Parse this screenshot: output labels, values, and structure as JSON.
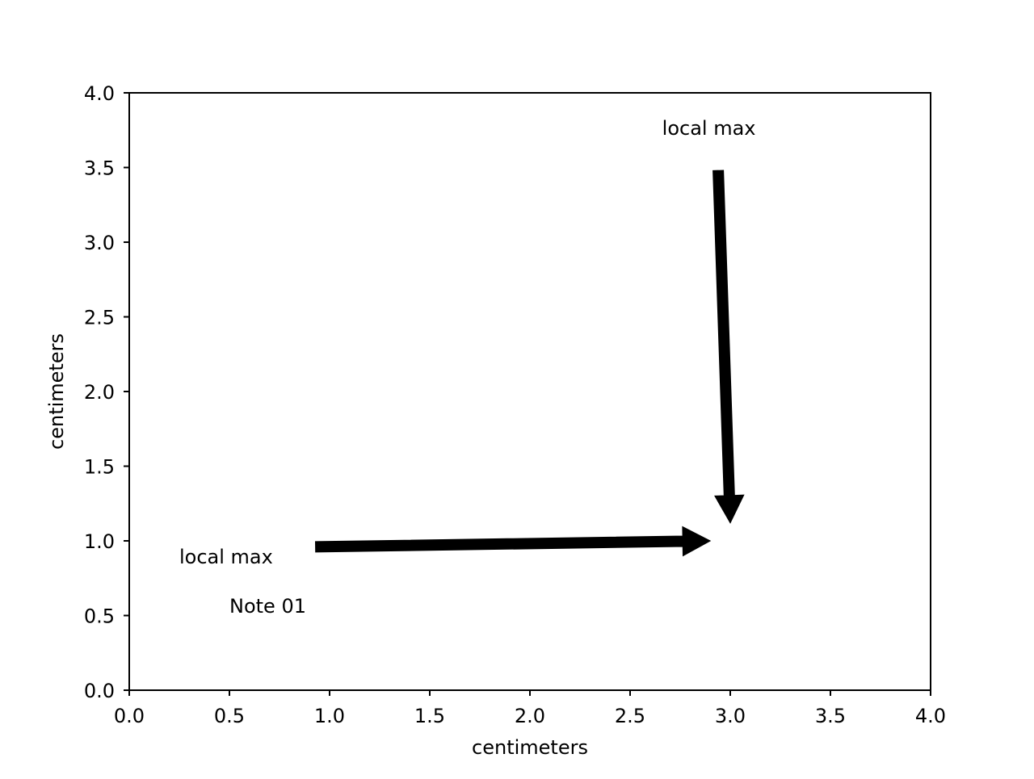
{
  "chart_data": {
    "type": "scatter",
    "title": "",
    "xlabel": "centimeters",
    "ylabel": "centimeters",
    "xlim": [
      0.0,
      4.0
    ],
    "ylim": [
      0.0,
      4.0
    ],
    "grid": false,
    "xticks": [
      0.0,
      0.5,
      1.0,
      1.5,
      2.0,
      2.5,
      3.0,
      3.5,
      4.0
    ],
    "yticks": [
      0.0,
      0.5,
      1.0,
      1.5,
      2.0,
      2.5,
      3.0,
      3.5,
      4.0
    ],
    "xtick_labels": [
      "0.0",
      "0.5",
      "1.0",
      "1.5",
      "2.0",
      "2.5",
      "3.0",
      "3.5",
      "4.0"
    ],
    "ytick_labels": [
      "0.0",
      "0.5",
      "1.0",
      "1.5",
      "2.0",
      "2.5",
      "3.0",
      "3.5",
      "4.0"
    ],
    "series": [],
    "annotations": [
      {
        "text": "local max",
        "text_at": [
          0.25,
          0.85
        ],
        "arrow_from": [
          0.93,
          0.96
        ],
        "arrow_to": [
          2.9,
          1.0
        ]
      },
      {
        "text": "local max",
        "text_at": [
          2.66,
          3.72
        ],
        "arrow_from": [
          2.94,
          3.48
        ],
        "arrow_to": [
          3.0,
          1.12
        ]
      },
      {
        "text": "Note 01",
        "text_at": [
          0.5,
          0.52
        ],
        "arrow_from": null,
        "arrow_to": null
      }
    ],
    "colors": {
      "axes": "#000000",
      "arrow": "#000000",
      "background": "#ffffff"
    }
  }
}
